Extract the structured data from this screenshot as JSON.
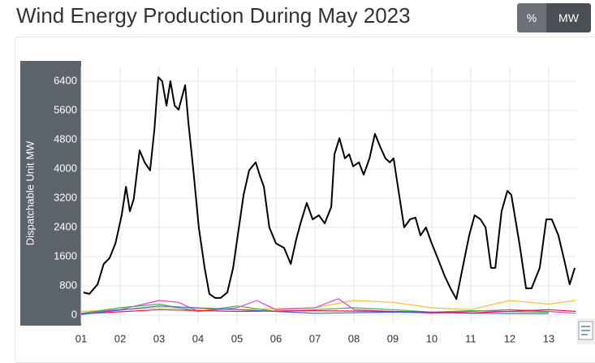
{
  "controls": {
    "toggle": [
      "%",
      "MW"
    ]
  },
  "chart_data": {
    "type": "line",
    "title": "Wind Energy Production During May 2023",
    "ylabel": "Dispatchable Unit MW",
    "xlim": [
      1,
      13.71
    ],
    "ylim": [
      0,
      6800
    ],
    "xticks": [
      {
        "value": 1,
        "label": "01"
      },
      {
        "value": 2,
        "label": "02"
      },
      {
        "value": 3,
        "label": "03"
      },
      {
        "value": 4,
        "label": "04"
      },
      {
        "value": 5,
        "label": "05"
      },
      {
        "value": 6,
        "label": "06"
      },
      {
        "value": 7,
        "label": "07"
      },
      {
        "value": 8,
        "label": "08"
      },
      {
        "value": 9,
        "label": "09"
      },
      {
        "value": 10,
        "label": "10"
      },
      {
        "value": 11,
        "label": "11"
      },
      {
        "value": 12,
        "label": "12"
      },
      {
        "value": 13,
        "label": "13"
      }
    ],
    "yticks": [
      0,
      800,
      1600,
      2400,
      3200,
      4000,
      4800,
      5600,
      6400
    ],
    "grid": true,
    "series": [
      {
        "color": "#f2c037",
        "x": [
          1,
          3,
          5,
          7,
          8,
          9,
          10,
          11,
          12,
          13,
          13.7
        ],
        "values": [
          100,
          200,
          150,
          200,
          400,
          350,
          200,
          150,
          400,
          300,
          400
        ]
      },
      {
        "color": "#e040c0",
        "x": [
          1,
          2,
          3,
          3.5,
          4,
          5,
          5.5,
          6,
          7,
          7.6,
          8,
          9,
          10,
          11,
          12,
          13,
          13.7
        ],
        "values": [
          50,
          150,
          400,
          350,
          100,
          200,
          400,
          150,
          200,
          450,
          150,
          100,
          50,
          100,
          150,
          100,
          50
        ]
      },
      {
        "color": "#3cb44b",
        "x": [
          1,
          2,
          3,
          4,
          5,
          6,
          7,
          8,
          9,
          10,
          11,
          12,
          13
        ],
        "values": [
          50,
          200,
          300,
          100,
          250,
          100,
          150,
          200,
          150,
          80,
          120,
          100,
          80
        ]
      },
      {
        "color": "#e6194b",
        "x": [
          1,
          3,
          5,
          7,
          9,
          11,
          13,
          13.7
        ],
        "values": [
          30,
          150,
          100,
          120,
          100,
          60,
          150,
          100
        ]
      },
      {
        "color": "#4363d8",
        "x": [
          1,
          3,
          5,
          7,
          9,
          11,
          13
        ],
        "values": [
          20,
          250,
          150,
          50,
          80,
          50,
          40
        ]
      },
      {
        "color": "#000000",
        "x": [
          1.06,
          1.21,
          1.42,
          1.58,
          1.73,
          1.88,
          2.04,
          2.15,
          2.25,
          2.35,
          2.5,
          2.63,
          2.77,
          2.88,
          2.98,
          3.08,
          3.19,
          3.29,
          3.4,
          3.5,
          3.67,
          3.75,
          3.88,
          4.02,
          4.17,
          4.29,
          4.44,
          4.58,
          4.75,
          4.9,
          5.02,
          5.17,
          5.31,
          5.48,
          5.58,
          5.69,
          5.83,
          6.0,
          6.21,
          6.38,
          6.52,
          6.63,
          6.79,
          6.94,
          7.1,
          7.25,
          7.42,
          7.5,
          7.63,
          7.77,
          7.88,
          7.98,
          8.13,
          8.25,
          8.4,
          8.54,
          8.67,
          8.81,
          8.92,
          9.02,
          9.13,
          9.29,
          9.44,
          9.58,
          9.71,
          9.85,
          10.0,
          10.17,
          10.33,
          10.48,
          10.63,
          10.79,
          10.96,
          11.1,
          11.25,
          11.38,
          11.52,
          11.63,
          11.79,
          11.94,
          12.04,
          12.25,
          12.42,
          12.56,
          12.77,
          12.94,
          13.08,
          13.25,
          13.4,
          13.54,
          13.67
        ],
        "values": [
          620,
          580,
          840,
          1400,
          1560,
          1960,
          2730,
          3510,
          2840,
          3180,
          4510,
          4180,
          3960,
          5070,
          6510,
          6400,
          5730,
          6400,
          5730,
          5620,
          6290,
          5290,
          3960,
          2400,
          1290,
          580,
          470,
          470,
          620,
          1290,
          2180,
          3290,
          3960,
          4180,
          3840,
          3510,
          2400,
          1960,
          1840,
          1400,
          2070,
          2510,
          3070,
          2620,
          2730,
          2510,
          2960,
          4400,
          4840,
          4290,
          4400,
          4070,
          4180,
          3840,
          4290,
          4960,
          4620,
          4290,
          4180,
          4290,
          3510,
          2400,
          2620,
          2670,
          2180,
          2400,
          1960,
          1510,
          1070,
          730,
          440,
          1290,
          2180,
          2730,
          2620,
          2400,
          1290,
          1290,
          2840,
          3400,
          3290,
          1960,
          730,
          730,
          1290,
          2620,
          2620,
          2180,
          1510,
          840,
          1290
        ]
      }
    ]
  }
}
